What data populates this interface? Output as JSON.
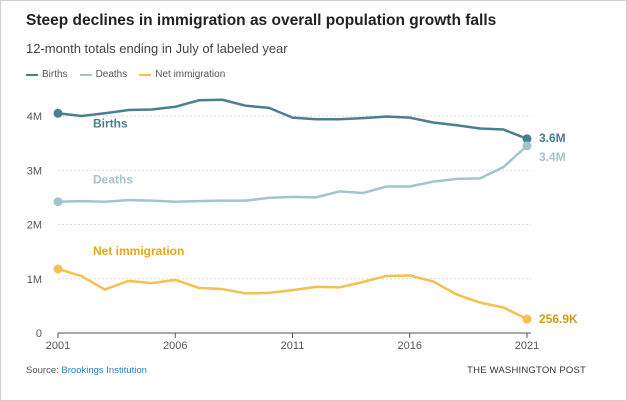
{
  "chart_data": {
    "type": "line",
    "title": "Steep declines in immigration as overall population growth falls",
    "subtitle": "12-month totals ending in July of labeled year",
    "x": [
      2001,
      2002,
      2003,
      2004,
      2005,
      2006,
      2007,
      2008,
      2009,
      2010,
      2011,
      2012,
      2013,
      2014,
      2015,
      2016,
      2017,
      2018,
      2019,
      2020,
      2021
    ],
    "x_ticks": [
      2001,
      2006,
      2011,
      2016,
      2021
    ],
    "y_ticks": [
      0,
      1000000,
      2000000,
      3000000,
      4000000
    ],
    "y_tick_labels": [
      "0",
      "1M",
      "2M",
      "3M",
      "4M"
    ],
    "ylim": [
      0,
      4000000
    ],
    "grid": true,
    "series": [
      {
        "name": "Births",
        "color": "#4a7f8f",
        "label": "Births",
        "end_label": "3.6M",
        "values": [
          4050000,
          4000000,
          4050000,
          4110000,
          4120000,
          4170000,
          4290000,
          4300000,
          4190000,
          4150000,
          3970000,
          3940000,
          3940000,
          3960000,
          3990000,
          3970000,
          3880000,
          3830000,
          3770000,
          3750000,
          3580000
        ]
      },
      {
        "name": "Deaths",
        "color": "#a3c4cc",
        "label": "Deaths",
        "end_label": "3.4M",
        "values": [
          2420000,
          2430000,
          2420000,
          2450000,
          2440000,
          2420000,
          2430000,
          2440000,
          2440000,
          2490000,
          2510000,
          2500000,
          2610000,
          2580000,
          2700000,
          2700000,
          2790000,
          2840000,
          2850000,
          3060000,
          3450000
        ]
      },
      {
        "name": "Net immigration",
        "color": "#f2c14e",
        "label": "Net immigration",
        "label_color": "#e4a817",
        "end_label": "256.9K",
        "end_label_color": "#d29a10",
        "values": [
          1180000,
          1050000,
          800000,
          960000,
          920000,
          980000,
          830000,
          810000,
          730000,
          740000,
          790000,
          850000,
          840000,
          940000,
          1050000,
          1060000,
          950000,
          710000,
          560000,
          470000,
          256900
        ]
      }
    ]
  },
  "legend": {
    "items": [
      {
        "label": "Births",
        "color": "#4a7f8f"
      },
      {
        "label": "Deaths",
        "color": "#a3c4cc"
      },
      {
        "label": "Net immigration",
        "color": "#f2c14e"
      }
    ]
  },
  "footer": {
    "source_prefix": "Source: ",
    "source_name": "Brookings Institution",
    "credit": "THE WASHINGTON POST"
  }
}
